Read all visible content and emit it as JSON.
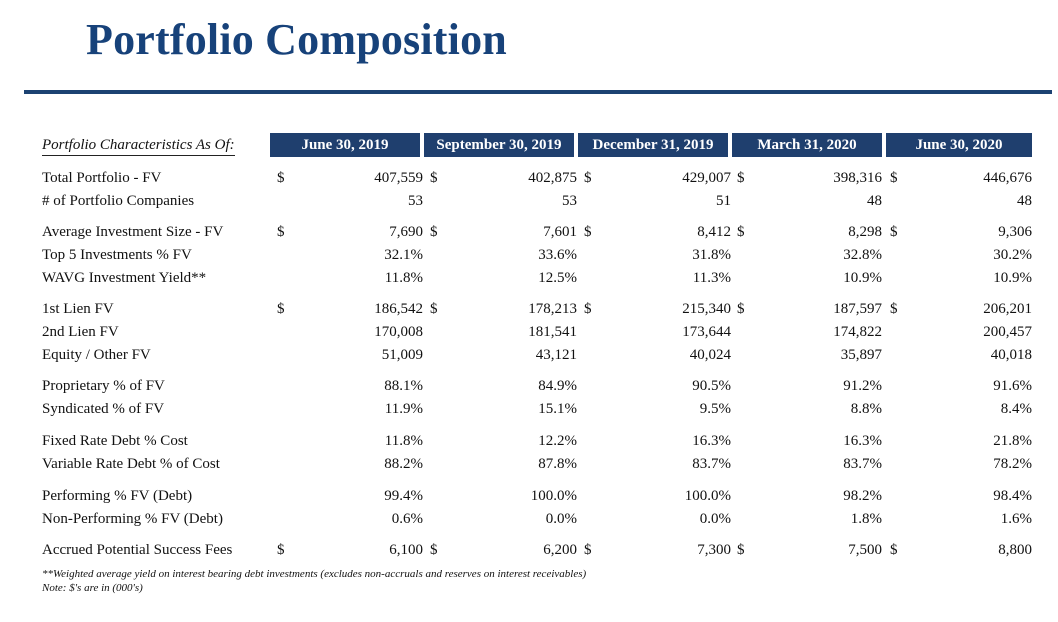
{
  "title": "Portfolio Composition",
  "header_label": "Portfolio Characteristics As Of:",
  "columns": [
    "June 30, 2019",
    "September 30, 2019",
    "December 31, 2019",
    "March 31, 2020",
    "June 30, 2020"
  ],
  "rows": [
    {
      "label": "Total Portfolio - FV",
      "dollar": true,
      "values": [
        "407,559",
        "402,875",
        "429,007",
        "398,316",
        "446,676"
      ]
    },
    {
      "label": "# of Portfolio Companies",
      "dollar": false,
      "values": [
        "53",
        "53",
        "51",
        "48",
        "48"
      ]
    },
    {
      "label": "Average Investment Size - FV",
      "dollar": true,
      "values": [
        "7,690",
        "7,601",
        "8,412",
        "8,298",
        "9,306"
      ]
    },
    {
      "label": "Top 5 Investments % FV",
      "dollar": false,
      "values": [
        "32.1%",
        "33.6%",
        "31.8%",
        "32.8%",
        "30.2%"
      ]
    },
    {
      "label": "WAVG Investment Yield**",
      "dollar": false,
      "values": [
        "11.8%",
        "12.5%",
        "11.3%",
        "10.9%",
        "10.9%"
      ]
    },
    {
      "label": "1st Lien FV",
      "dollar": true,
      "values": [
        "186,542",
        "178,213",
        "215,340",
        "187,597",
        "206,201"
      ]
    },
    {
      "label": "2nd Lien FV",
      "dollar": false,
      "values": [
        "170,008",
        "181,541",
        "173,644",
        "174,822",
        "200,457"
      ]
    },
    {
      "label": "Equity / Other FV",
      "dollar": false,
      "values": [
        "51,009",
        "43,121",
        "40,024",
        "35,897",
        "40,018"
      ]
    },
    {
      "label": "Proprietary % of FV",
      "dollar": false,
      "values": [
        "88.1%",
        "84.9%",
        "90.5%",
        "91.2%",
        "91.6%"
      ]
    },
    {
      "label": "Syndicated % of FV",
      "dollar": false,
      "values": [
        "11.9%",
        "15.1%",
        "9.5%",
        "8.8%",
        "8.4%"
      ]
    },
    {
      "label": "Fixed Rate Debt % Cost",
      "dollar": false,
      "values": [
        "11.8%",
        "12.2%",
        "16.3%",
        "16.3%",
        "21.8%"
      ]
    },
    {
      "label": "Variable Rate Debt % of Cost",
      "dollar": false,
      "values": [
        "88.2%",
        "87.8%",
        "83.7%",
        "83.7%",
        "78.2%"
      ]
    },
    {
      "label": "Performing % FV (Debt)",
      "dollar": false,
      "values": [
        "99.4%",
        "100.0%",
        "100.0%",
        "98.2%",
        "98.4%"
      ]
    },
    {
      "label": "Non-Performing % FV (Debt)",
      "dollar": false,
      "values": [
        "0.6%",
        "0.0%",
        "0.0%",
        "1.8%",
        "1.6%"
      ]
    },
    {
      "label": "Accrued Potential Success Fees",
      "dollar": true,
      "values": [
        "6,100",
        "6,200",
        "7,300",
        "7,500",
        "8,800"
      ]
    }
  ],
  "dollar_sign": "$",
  "footnotes": [
    "**Weighted average yield on interest bearing debt investments (excludes non-accruals and reserves on interest receivables)",
    "Note: $'s are in (000's)"
  ]
}
